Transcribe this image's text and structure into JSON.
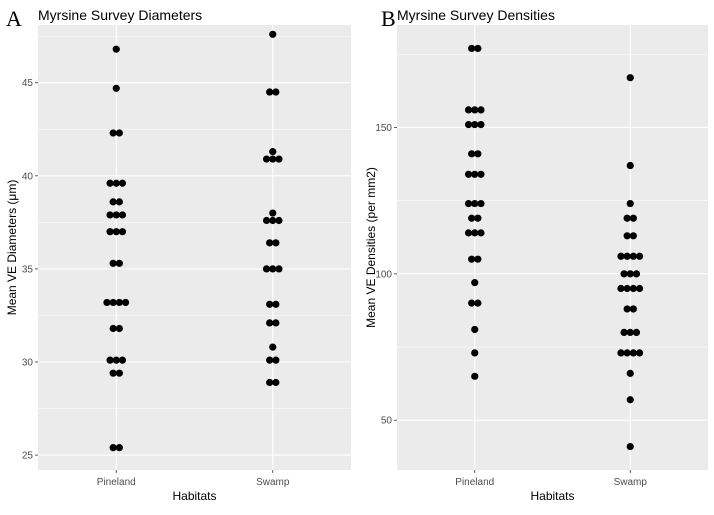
{
  "chart_data": [
    {
      "panel_label": "A",
      "type": "scatter",
      "subtype": "dotplot",
      "title": "Myrsine Survey Diameters",
      "xlabel": "Habitats",
      "ylabel": "Mean VE Diameters (μm)",
      "categories": [
        "Pineland",
        "Swamp"
      ],
      "ylim": [
        24.2,
        48.1
      ],
      "yticks": [
        25,
        30,
        35,
        40,
        45
      ],
      "grid": true,
      "legend": "none",
      "points": [
        {
          "category": "Pineland",
          "values": [
            46.8,
            44.7,
            42.3,
            42.3,
            39.6,
            39.6,
            39.6,
            38.6,
            38.6,
            37.9,
            37.9,
            37.9,
            37.0,
            37.0,
            37.0,
            35.3,
            35.3,
            33.2,
            33.2,
            33.2,
            33.2,
            31.8,
            31.8,
            30.1,
            30.1,
            30.1,
            29.4,
            29.4,
            25.4,
            25.4
          ]
        },
        {
          "category": "Swamp",
          "values": [
            47.6,
            44.5,
            44.5,
            41.3,
            40.9,
            40.9,
            40.9,
            38.0,
            37.6,
            37.6,
            37.6,
            36.4,
            36.4,
            35.0,
            35.0,
            35.0,
            33.1,
            33.1,
            32.1,
            32.1,
            30.8,
            30.1,
            30.1,
            28.9,
            28.9
          ]
        }
      ]
    },
    {
      "panel_label": "B",
      "type": "scatter",
      "subtype": "dotplot",
      "title": "Myrsine Survey Densities",
      "xlabel": "Habitats",
      "ylabel": "Mean VE Densities (per mm2)",
      "categories": [
        "Pineland",
        "Swamp"
      ],
      "ylim": [
        33,
        185
      ],
      "yticks": [
        50,
        100,
        150
      ],
      "grid": true,
      "legend": "none",
      "points": [
        {
          "category": "Pineland",
          "values": [
            177,
            177,
            156,
            156,
            156,
            151,
            151,
            151,
            141,
            141,
            134,
            134,
            134,
            124,
            124,
            124,
            119,
            119,
            114,
            114,
            114,
            105,
            105,
            97,
            90,
            90,
            81,
            73,
            65
          ]
        },
        {
          "category": "Swamp",
          "values": [
            167,
            137,
            124,
            119,
            119,
            113,
            113,
            106,
            106,
            106,
            106,
            100,
            100,
            100,
            95,
            95,
            95,
            95,
            88,
            88,
            80,
            80,
            80,
            73,
            73,
            73,
            73,
            66,
            57,
            41
          ]
        }
      ]
    }
  ]
}
